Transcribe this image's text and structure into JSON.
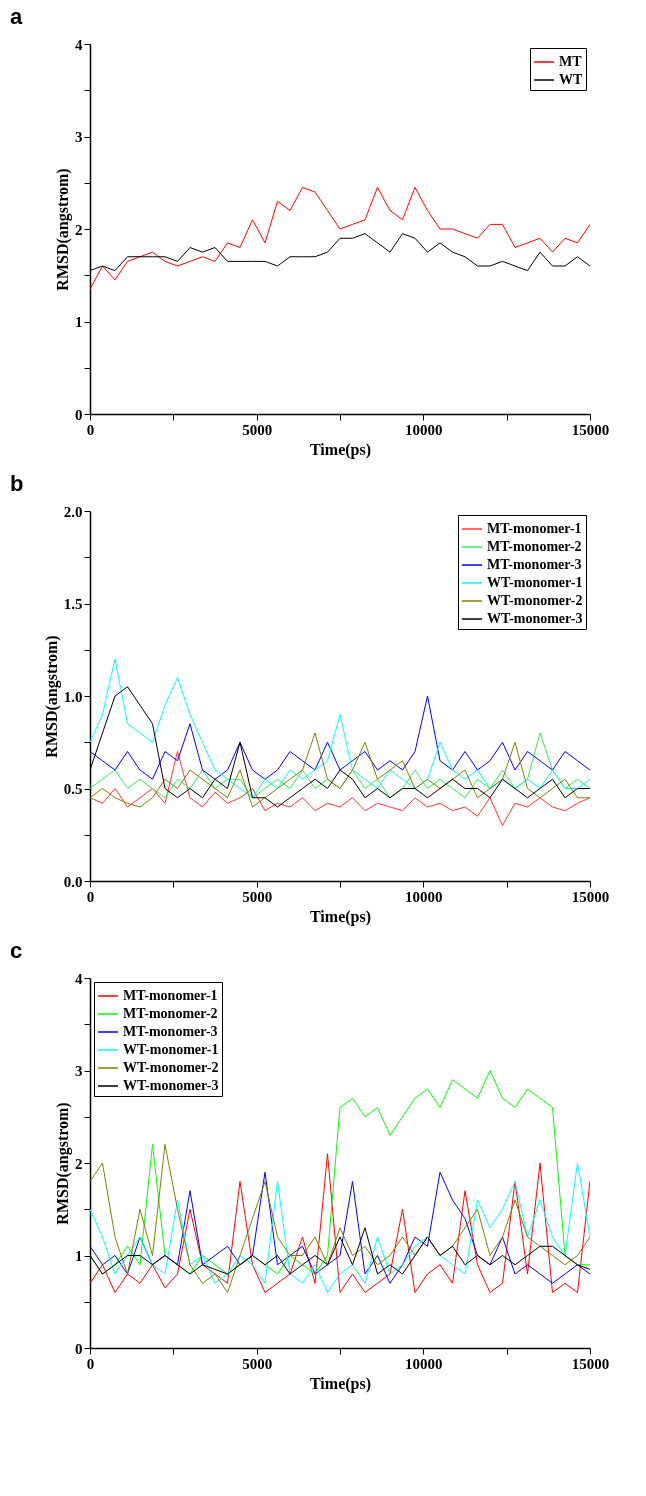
{
  "chart_data": [
    {
      "type": "line",
      "title": "a",
      "xlabel": "Time(ps)",
      "ylabel": "RMSD(angstrom)",
      "legend": "top right",
      "xlim": [
        0,
        15000
      ],
      "xticks": [
        0,
        {
          "value": 2500,
          "label": null
        },
        5000,
        {
          "value": 7500,
          "label": null
        },
        10000,
        {
          "value": 12500,
          "label": null
        },
        15000
      ],
      "ylim": [
        0,
        4
      ],
      "yticks": [
        0,
        {
          "value": 0.5,
          "label": null
        },
        1,
        {
          "value": 1.5,
          "label": null
        },
        2,
        {
          "value": 2.5,
          "label": null
        },
        3,
        {
          "value": 3.5,
          "label": null
        },
        4
      ],
      "x": [
        0,
        375,
        750,
        1125,
        1500,
        1875,
        2250,
        2625,
        3000,
        3375,
        3750,
        4125,
        4500,
        4875,
        5250,
        5625,
        6000,
        6375,
        6750,
        7125,
        7500,
        7875,
        8250,
        8625,
        9000,
        9375,
        9750,
        10125,
        10500,
        10875,
        11250,
        11625,
        12000,
        12375,
        12750,
        13125,
        13500,
        13875,
        14250,
        14625,
        15000
      ],
      "series": [
        {
          "name": "MT",
          "color": "#ff0000",
          "values": [
            1.35,
            1.6,
            1.45,
            1.65,
            1.7,
            1.75,
            1.65,
            1.6,
            1.65,
            1.7,
            1.65,
            1.85,
            1.8,
            2.1,
            1.85,
            2.3,
            2.2,
            2.45,
            2.4,
            2.2,
            2.0,
            2.05,
            2.1,
            2.45,
            2.2,
            2.1,
            2.45,
            2.2,
            2.0,
            2.0,
            1.95,
            1.9,
            2.05,
            2.05,
            1.8,
            1.85,
            1.9,
            1.75,
            1.9,
            1.85,
            2.05
          ]
        },
        {
          "name": "WT",
          "color": "#000000",
          "values": [
            1.55,
            1.6,
            1.55,
            1.7,
            1.7,
            1.7,
            1.7,
            1.65,
            1.8,
            1.75,
            1.8,
            1.65,
            1.65,
            1.65,
            1.65,
            1.6,
            1.7,
            1.7,
            1.7,
            1.75,
            1.9,
            1.9,
            1.95,
            1.85,
            1.75,
            1.95,
            1.9,
            1.75,
            1.85,
            1.75,
            1.7,
            1.6,
            1.6,
            1.65,
            1.6,
            1.55,
            1.75,
            1.6,
            1.6,
            1.7,
            1.6
          ]
        }
      ]
    },
    {
      "type": "line",
      "title": "b",
      "xlabel": "Time(ps)",
      "ylabel": "RMSD(angstrom)",
      "legend": "top right",
      "xlim": [
        0,
        15000
      ],
      "xticks": [
        0,
        {
          "value": 2500,
          "label": null
        },
        5000,
        {
          "value": 7500,
          "label": null
        },
        10000,
        {
          "value": 12500,
          "label": null
        },
        15000
      ],
      "ylim": [
        0,
        2
      ],
      "yticks": [
        {
          "value": 0,
          "label": "0.0"
        },
        {
          "value": 0.25,
          "label": null
        },
        0.5,
        {
          "value": 0.75,
          "label": null
        },
        {
          "value": 1,
          "label": "1.0"
        },
        {
          "value": 1.25,
          "label": null
        },
        1.5,
        {
          "value": 1.75,
          "label": null
        },
        {
          "value": 2,
          "label": "2.0"
        }
      ],
      "x": [
        0,
        375,
        750,
        1125,
        1500,
        1875,
        2250,
        2625,
        3000,
        3375,
        3750,
        4125,
        4500,
        4875,
        5250,
        5625,
        6000,
        6375,
        6750,
        7125,
        7500,
        7875,
        8250,
        8625,
        9000,
        9375,
        9750,
        10125,
        10500,
        10875,
        11250,
        11625,
        12000,
        12375,
        12750,
        13125,
        13500,
        13875,
        14250,
        14625,
        15000
      ],
      "series": [
        {
          "name": "MT-monomer-1",
          "color": "#ff3333",
          "values": [
            0.45,
            0.42,
            0.5,
            0.4,
            0.45,
            0.5,
            0.42,
            0.7,
            0.45,
            0.4,
            0.48,
            0.42,
            0.45,
            0.5,
            0.38,
            0.42,
            0.4,
            0.45,
            0.38,
            0.42,
            0.4,
            0.45,
            0.38,
            0.42,
            0.4,
            0.38,
            0.45,
            0.4,
            0.42,
            0.38,
            0.4,
            0.35,
            0.45,
            0.3,
            0.42,
            0.4,
            0.45,
            0.4,
            0.38,
            0.42,
            0.45
          ]
        },
        {
          "name": "MT-monomer-2",
          "color": "#33ee55",
          "values": [
            0.5,
            0.55,
            0.6,
            0.5,
            0.55,
            0.5,
            0.45,
            0.55,
            0.5,
            0.6,
            0.5,
            0.55,
            0.55,
            0.45,
            0.5,
            0.55,
            0.5,
            0.6,
            0.5,
            0.55,
            0.5,
            0.6,
            0.5,
            0.55,
            0.45,
            0.5,
            0.6,
            0.5,
            0.55,
            0.5,
            0.45,
            0.55,
            0.5,
            0.6,
            0.5,
            0.55,
            0.8,
            0.6,
            0.5,
            0.55,
            0.5
          ]
        },
        {
          "name": "MT-monomer-3",
          "color": "#0000ff",
          "values": [
            0.7,
            0.65,
            0.6,
            0.7,
            0.6,
            0.55,
            0.7,
            0.65,
            0.85,
            0.6,
            0.55,
            0.6,
            0.75,
            0.6,
            0.55,
            0.6,
            0.7,
            0.65,
            0.6,
            0.75,
            0.6,
            0.65,
            0.7,
            0.6,
            0.65,
            0.6,
            0.7,
            1.0,
            0.65,
            0.6,
            0.7,
            0.6,
            0.65,
            0.75,
            0.6,
            0.7,
            0.65,
            0.6,
            0.7,
            0.65,
            0.6
          ]
        },
        {
          "name": "WT-monomer-1",
          "color": "#00ffff",
          "values": [
            0.75,
            0.9,
            1.2,
            0.85,
            0.8,
            0.75,
            0.95,
            1.1,
            0.9,
            0.75,
            0.6,
            0.55,
            0.5,
            0.45,
            0.55,
            0.5,
            0.6,
            0.55,
            0.6,
            0.65,
            0.9,
            0.6,
            0.55,
            0.5,
            0.6,
            0.55,
            0.5,
            0.55,
            0.75,
            0.6,
            0.55,
            0.6,
            0.5,
            0.55,
            0.5,
            0.55,
            0.5,
            0.6,
            0.5,
            0.5,
            0.55
          ]
        },
        {
          "name": "WT-monomer-2",
          "color": "#808000",
          "values": [
            0.45,
            0.5,
            0.45,
            0.42,
            0.4,
            0.45,
            0.55,
            0.5,
            0.6,
            0.55,
            0.5,
            0.45,
            0.6,
            0.4,
            0.45,
            0.5,
            0.55,
            0.6,
            0.8,
            0.55,
            0.5,
            0.6,
            0.75,
            0.55,
            0.6,
            0.65,
            0.5,
            0.55,
            0.5,
            0.55,
            0.6,
            0.45,
            0.5,
            0.55,
            0.75,
            0.5,
            0.45,
            0.5,
            0.55,
            0.45,
            0.45
          ]
        },
        {
          "name": "WT-monomer-3",
          "color": "#000000",
          "values": [
            0.6,
            0.8,
            1.0,
            1.05,
            0.95,
            0.85,
            0.5,
            0.45,
            0.5,
            0.45,
            0.55,
            0.5,
            0.75,
            0.45,
            0.45,
            0.4,
            0.45,
            0.5,
            0.55,
            0.5,
            0.6,
            0.55,
            0.45,
            0.5,
            0.45,
            0.5,
            0.5,
            0.45,
            0.5,
            0.55,
            0.5,
            0.5,
            0.45,
            0.55,
            0.5,
            0.45,
            0.5,
            0.55,
            0.45,
            0.5,
            0.5
          ]
        }
      ]
    },
    {
      "type": "line",
      "title": "c",
      "xlabel": "Time(ps)",
      "ylabel": "RMSD(angstrom)",
      "legend": "top left",
      "xlim": [
        0,
        15000
      ],
      "xticks": [
        0,
        {
          "value": 2500,
          "label": null
        },
        5000,
        {
          "value": 7500,
          "label": null
        },
        10000,
        {
          "value": 12500,
          "label": null
        },
        15000
      ],
      "ylim": [
        0,
        4
      ],
      "yticks": [
        0,
        {
          "value": 0.5,
          "label": null
        },
        1,
        {
          "value": 1.5,
          "label": null
        },
        2,
        {
          "value": 2.5,
          "label": null
        },
        3,
        {
          "value": 3.5,
          "label": null
        },
        4
      ],
      "x": [
        0,
        375,
        750,
        1125,
        1500,
        1875,
        2250,
        2625,
        3000,
        3375,
        3750,
        4125,
        4500,
        4875,
        5250,
        5625,
        6000,
        6375,
        6750,
        7125,
        7500,
        7875,
        8250,
        8625,
        9000,
        9375,
        9750,
        10125,
        10500,
        10875,
        11250,
        11625,
        12000,
        12375,
        12750,
        13125,
        13500,
        13875,
        14250,
        14625,
        15000
      ],
      "series": [
        {
          "name": "MT-monomer-1",
          "color": "#ff0000",
          "values": [
            0.7,
            0.9,
            0.6,
            0.8,
            0.7,
            0.9,
            0.65,
            0.8,
            1.5,
            0.9,
            0.8,
            0.7,
            1.8,
            0.9,
            0.6,
            0.7,
            0.8,
            1.2,
            0.7,
            2.1,
            0.6,
            0.8,
            0.6,
            0.7,
            0.8,
            1.5,
            0.6,
            0.8,
            0.9,
            0.7,
            1.7,
            0.9,
            0.6,
            0.7,
            1.8,
            0.8,
            2.0,
            0.6,
            0.7,
            0.6,
            1.8
          ]
        },
        {
          "name": "MT-monomer-2",
          "color": "#00ff00",
          "values": [
            1.0,
            0.8,
            0.9,
            1.1,
            0.9,
            2.2,
            1.0,
            0.9,
            0.8,
            1.0,
            0.9,
            0.8,
            0.9,
            1.0,
            0.9,
            0.8,
            1.0,
            0.9,
            0.8,
            1.0,
            2.6,
            2.7,
            2.5,
            2.6,
            2.3,
            2.5,
            2.7,
            2.8,
            2.6,
            2.9,
            2.8,
            2.7,
            3.0,
            2.7,
            2.6,
            2.8,
            2.7,
            2.6,
            1.0,
            0.9,
            0.9
          ]
        },
        {
          "name": "MT-monomer-3",
          "color": "#0000ff",
          "values": [
            1.1,
            0.9,
            1.0,
            0.8,
            1.2,
            0.9,
            1.0,
            0.9,
            1.7,
            0.9,
            1.0,
            1.1,
            0.9,
            1.0,
            1.9,
            0.9,
            1.0,
            1.1,
            0.8,
            0.9,
            1.0,
            1.8,
            0.8,
            1.0,
            0.7,
            0.9,
            1.2,
            1.1,
            1.9,
            1.6,
            1.4,
            1.0,
            0.9,
            1.2,
            0.8,
            0.9,
            0.8,
            0.7,
            0.8,
            0.9,
            0.8
          ]
        },
        {
          "name": "WT-monomer-1",
          "color": "#00ffff",
          "values": [
            1.5,
            1.2,
            0.8,
            1.0,
            1.2,
            0.9,
            0.8,
            1.6,
            0.9,
            1.0,
            0.7,
            0.8,
            1.0,
            0.9,
            0.7,
            1.8,
            0.8,
            0.7,
            0.9,
            0.6,
            0.8,
            0.9,
            0.7,
            1.2,
            0.8,
            0.9,
            1.1,
            1.2,
            1.0,
            0.9,
            0.8,
            1.6,
            1.3,
            1.5,
            1.8,
            1.2,
            1.6,
            1.2,
            1.0,
            2.0,
            1.2
          ]
        },
        {
          "name": "WT-monomer-2",
          "color": "#808000",
          "values": [
            1.8,
            2.0,
            1.2,
            0.8,
            1.5,
            1.0,
            2.2,
            1.5,
            0.9,
            0.7,
            0.8,
            0.6,
            1.0,
            1.4,
            1.8,
            1.2,
            1.0,
            1.0,
            1.2,
            0.9,
            1.3,
            1.0,
            1.1,
            0.9,
            1.0,
            1.2,
            1.0,
            1.2,
            1.0,
            1.1,
            1.3,
            1.5,
            1.0,
            1.2,
            1.6,
            1.2,
            1.1,
            1.0,
            0.9,
            1.0,
            1.2
          ]
        },
        {
          "name": "WT-monomer-3",
          "color": "#000000",
          "values": [
            1.0,
            0.8,
            0.9,
            1.0,
            1.0,
            0.9,
            1.0,
            0.9,
            0.8,
            0.9,
            0.85,
            0.8,
            0.9,
            1.0,
            0.9,
            1.0,
            0.8,
            0.9,
            1.0,
            0.9,
            1.2,
            0.9,
            1.3,
            0.8,
            0.9,
            0.8,
            1.0,
            1.2,
            1.0,
            1.1,
            0.9,
            1.0,
            0.9,
            1.0,
            0.9,
            1.0,
            1.1,
            1.1,
            1.0,
            0.9,
            0.85
          ]
        }
      ]
    }
  ]
}
